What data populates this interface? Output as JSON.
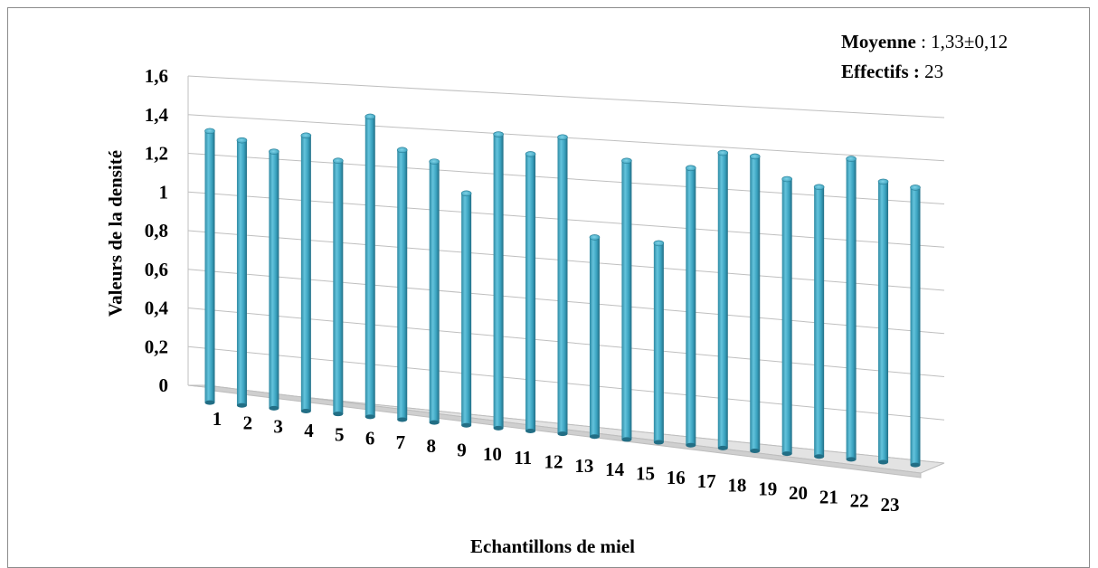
{
  "chart_data": {
    "type": "bar",
    "xlabel": "Echantillons de miel",
    "ylabel": "Valeurs de la densité",
    "ylim": [
      0,
      1.6
    ],
    "y_ticks": [
      "0",
      "0,2",
      "0,4",
      "0,6",
      "0,8",
      "1",
      "1,2",
      "1,4",
      "1,6"
    ],
    "grid": true,
    "categories": [
      "1",
      "2",
      "3",
      "4",
      "5",
      "6",
      "7",
      "8",
      "9",
      "10",
      "11",
      "12",
      "13",
      "14",
      "15",
      "16",
      "17",
      "18",
      "19",
      "20",
      "21",
      "22",
      "23"
    ],
    "values": [
      1.4,
      1.36,
      1.31,
      1.4,
      1.28,
      1.51,
      1.35,
      1.3,
      1.15,
      1.45,
      1.36,
      1.45,
      0.97,
      1.35,
      0.96,
      1.33,
      1.41,
      1.4,
      1.3,
      1.27,
      1.41,
      1.31,
      1.29
    ],
    "color": "#4bacc6",
    "legend": {
      "mean_label": "Moyenne",
      "mean_sep": " : ",
      "mean_value": "1,33±0,12",
      "count_label": "Effectifs :",
      "count_value": "23"
    }
  }
}
